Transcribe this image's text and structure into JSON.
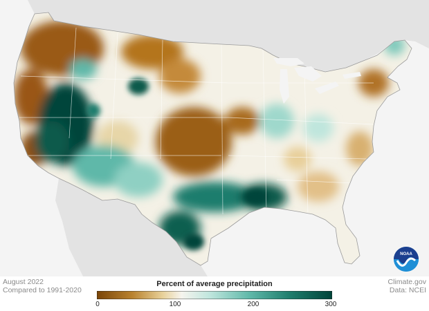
{
  "legend": {
    "title": "Percent of average precipitation",
    "ticks": [
      "0",
      "100",
      "200",
      "300"
    ],
    "colors": [
      "#7a4508",
      "#b9822e",
      "#e8d19a",
      "#f6f4ee",
      "#bfe6dd",
      "#5fb8a9",
      "#1f7d6d",
      "#00443a"
    ]
  },
  "meta": {
    "date": "August 2022",
    "baseline": "Compared to 1991-2020",
    "source": "Climate.gov",
    "data_source": "Data: NCEI"
  },
  "logo": {
    "text": "NOAA",
    "colors": [
      "#1b3f8f",
      "#1f8fd6"
    ]
  }
}
